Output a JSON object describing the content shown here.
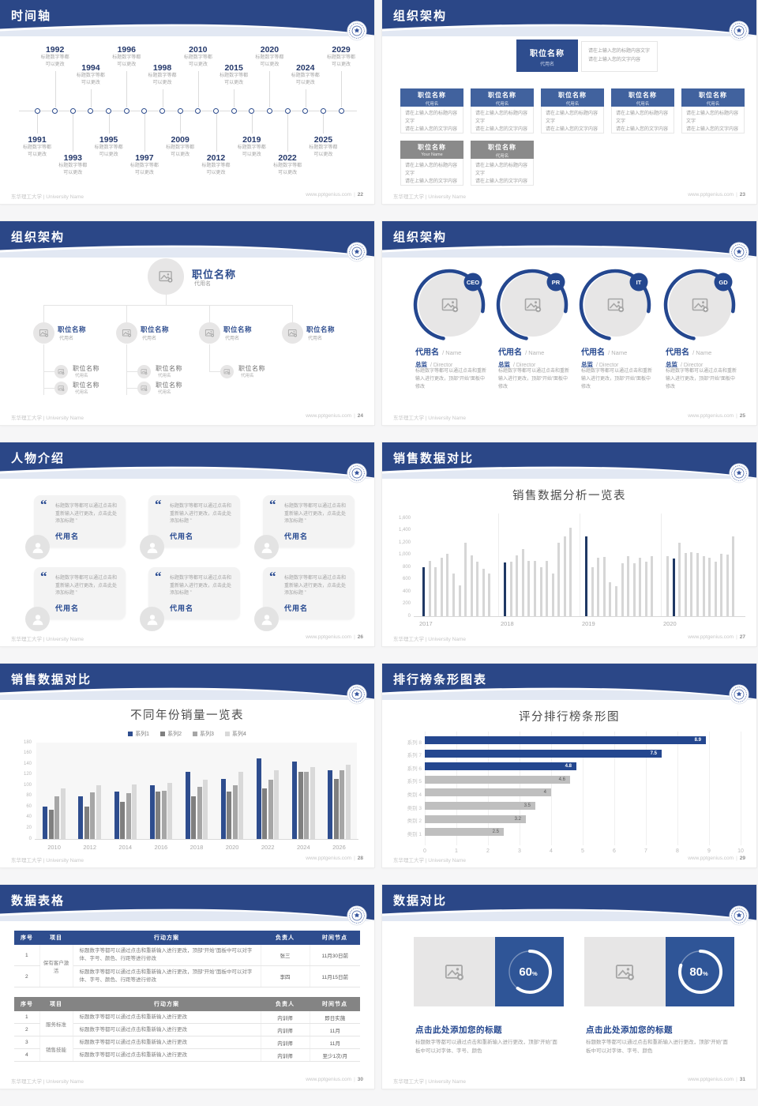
{
  "page": {
    "footer_left": "东华理工大学 | University Name",
    "footer_site": "www.pptgenius.com",
    "footer_separator": "|"
  },
  "colors": {
    "header_navy": "#2b4787",
    "navy": "#2e4d8e",
    "dark_navy": "#1f3864",
    "box_blue": "#41629e",
    "box_gray": "#8a8a8a",
    "panel_blue": "#2f5597",
    "placeholder_gray": "#e7e6e6",
    "silver": "#bfbfbf"
  },
  "common": {
    "box_body_line1": "请在上输入您的标题内容文字",
    "box_body_line2": "请在上输入您的文字内容"
  },
  "slides": {
    "timeline": {
      "title": "时间轴",
      "page_no": "22",
      "caption": [
        "标题数字等都",
        "可以更改"
      ],
      "top_years": [
        "1992",
        "1994",
        "1996",
        "1998",
        "2010",
        "2015",
        "2020",
        "2024",
        "2029"
      ],
      "bottom_years": [
        "1991",
        "1993",
        "1995",
        "1997",
        "2009",
        "2012",
        "2019",
        "2022",
        "2025"
      ]
    },
    "org_boxes": {
      "title": "组织架构",
      "page_no": "23",
      "root": {
        "name": "职位名称",
        "alias": "代用名"
      },
      "root_note": [
        "请在上输入您的标题内容文字",
        "请在上输入您的文字内容"
      ],
      "row1": [
        {
          "name": "职位名称",
          "alias": "代用名"
        },
        {
          "name": "职位名称",
          "alias": "代用名"
        },
        {
          "name": "职位名称",
          "alias": "代用名"
        },
        {
          "name": "职位名称",
          "alias": "代用名"
        },
        {
          "name": "职位名称",
          "alias": "代用名"
        }
      ],
      "row2": [
        {
          "name": "职位名称",
          "alias": "Your Name"
        },
        {
          "name": "职位名称",
          "alias": "代用名"
        }
      ]
    },
    "org_tree": {
      "title": "组织架构",
      "page_no": "24",
      "root": {
        "name": "职位名称",
        "alias": "代用名"
      },
      "branches": [
        {
          "name": "职位名称",
          "alias": "代用名",
          "children": [
            {
              "name": "职位名称",
              "alias": "代用名"
            },
            {
              "name": "职位名称",
              "alias": "代用名"
            }
          ]
        },
        {
          "name": "职位名称",
          "alias": "代用名",
          "children": [
            {
              "name": "职位名称",
              "alias": "代用名"
            },
            {
              "name": "职位名称",
              "alias": "代用名"
            }
          ]
        },
        {
          "name": "职位名称",
          "alias": "代用名",
          "children": [
            {
              "name": "职位名称",
              "alias": "代用名"
            }
          ]
        },
        {
          "name": "职位名称",
          "alias": "代用名",
          "children": []
        }
      ]
    },
    "org_profiles": {
      "title": "组织架构",
      "page_no": "25",
      "desc": "标题数字等都可以通过点击和重新输入进行更改，顶部“开始”面板中修改",
      "profiles": [
        {
          "badge": "CEO",
          "name": "代用名",
          "name_suffix": "/ Name",
          "role": "总监",
          "role_suffix": "/  Director"
        },
        {
          "badge": "PR",
          "name": "代用名",
          "name_suffix": "/ Name",
          "role": "总监",
          "role_suffix": "/  Director"
        },
        {
          "badge": "IT",
          "name": "代用名",
          "name_suffix": "/ Name",
          "role": "总监",
          "role_suffix": "/  Director"
        },
        {
          "badge": "GD",
          "name": "代用名",
          "name_suffix": "/ Name",
          "role": "总监",
          "role_suffix": "/  Director"
        }
      ]
    },
    "people": {
      "title": "人物介绍",
      "page_no": "26",
      "quote": "标题数字等都可以通过点击和重新输入进行更改，点击此处添加标题",
      "cards": [
        {
          "name": "代用名"
        },
        {
          "name": "代用名"
        },
        {
          "name": "代用名"
        },
        {
          "name": "代用名"
        },
        {
          "name": "代用名"
        },
        {
          "name": "代用名"
        }
      ]
    },
    "sales_trend": {
      "title": "销售数据对比",
      "page_no": "27"
    },
    "sales_groups": {
      "title": "销售数据对比",
      "page_no": "28"
    },
    "ranking": {
      "title": "排行榜条形图表",
      "page_no": "29"
    },
    "tables": {
      "title": "数据表格",
      "page_no": "30",
      "headers": [
        "序号",
        "项目",
        "行动方案",
        "负责人",
        "时间节点"
      ],
      "table1_rows": [
        {
          "no": "1",
          "project": "保有客户激活",
          "rowspan": 2,
          "plan": "标题数字等都可以通过点击和重新输入进行更改，顶部“开始”面板中可以对字体、字号、颜色、行距等进行修改",
          "owner": "张三",
          "due": "11月30日前"
        },
        {
          "no": "2",
          "plan": "标题数字等都可以通过点击和重新输入进行更改，顶部“开始”面板中可以对字体、字号、颜色、行距等进行修改",
          "owner": "李四",
          "due": "11月15日前"
        }
      ],
      "table2_rows": [
        {
          "no": "1",
          "project": "服务标准",
          "rowspan": 2,
          "plan": "标题数字等都可以通过点击和重新输入进行更改",
          "owner": "内训师",
          "due": "即日实施"
        },
        {
          "no": "2",
          "plan": "标题数字等都可以通过点击和重新输入进行更改",
          "owner": "内训师",
          "due": "11月"
        },
        {
          "no": "3",
          "project": "销售技能",
          "rowspan": 2,
          "plan": "标题数字等都可以通过点击和重新输入进行更改",
          "owner": "内训师",
          "due": "11月"
        },
        {
          "no": "4",
          "plan": "标题数字等都可以通过点击和重新输入进行更改",
          "owner": "内训师",
          "due": "至少1次/月"
        }
      ]
    },
    "compare": {
      "title": "数据对比",
      "page_no": "31",
      "cards": [
        {
          "percent": 60,
          "heading": "点击此处添加您的标题",
          "body": "标题数字等都可以通过点击和重新输入进行更改，顶部“开始”面板中可以对字体、字号、颜色"
        },
        {
          "percent": 80,
          "heading": "点击此处添加您的标题",
          "body": "标题数字等都可以通过点击和重新输入进行更改，顶部“开始”面板中可以对字体、字号、颜色"
        }
      ]
    }
  },
  "chart_data": [
    {
      "slide": "27",
      "type": "bar",
      "title": "销售数据分析一览表",
      "xlabel": "",
      "ylabel": "",
      "ylim": [
        0,
        1600
      ],
      "ytick_step": 200,
      "x_groups": [
        "2017",
        "2018",
        "2019",
        "2020"
      ],
      "bars_per_group": 12,
      "values": [
        [
          800,
          900,
          800,
          950,
          1020,
          700,
          500,
          1200,
          990,
          890,
          780,
          700
        ],
        [
          880,
          890,
          1000,
          1100,
          900,
          900,
          800,
          900,
          700,
          1200,
          1300,
          1450
        ],
        [
          1300,
          800,
          950,
          970,
          560,
          490,
          870,
          980,
          860,
          960,
          890,
          980
        ],
        [
          980,
          940,
          1200,
          1030,
          1050,
          1030,
          980,
          960,
          890,
          1020,
          1010,
          1300
        ]
      ],
      "highlight_index_per_group": [
        0,
        0,
        0,
        1
      ],
      "bar_color": "#d6d6d6",
      "highlight_color": "#1f3864",
      "grid": "group-separators",
      "legend": false
    },
    {
      "slide": "28",
      "type": "bar",
      "title": "不同年份销量一览表",
      "categories": [
        "2010",
        "2012",
        "2014",
        "2016",
        "2018",
        "2020",
        "2022",
        "2024",
        "2026"
      ],
      "ylim": [
        0,
        180
      ],
      "ytick_step": 20,
      "legend_position": "top",
      "series": [
        {
          "name": "系列1",
          "color": "#2e4d8e",
          "values": [
            60,
            80,
            88,
            100,
            125,
            112,
            150,
            145,
            128
          ]
        },
        {
          "name": "系列2",
          "color": "#7f7f7f",
          "values": [
            55,
            60,
            70,
            88,
            80,
            88,
            95,
            125,
            112
          ]
        },
        {
          "name": "系列3",
          "color": "#a6a6a6",
          "values": [
            80,
            87,
            85,
            90,
            97,
            100,
            110,
            125,
            128
          ]
        },
        {
          "name": "系列4",
          "color": "#d9d9d9",
          "values": [
            95,
            100,
            102,
            105,
            110,
            125,
            128,
            135,
            138
          ]
        }
      ]
    },
    {
      "slide": "29",
      "type": "bar-horizontal",
      "title": "评分排行榜条形图",
      "categories": [
        "系列 8",
        "系列 7",
        "系列 6",
        "系列 5",
        "类别 4",
        "类别 3",
        "类别 2",
        "类别 1"
      ],
      "values": [
        8.9,
        7.5,
        4.8,
        4.6,
        4,
        3.5,
        3.2,
        2.5
      ],
      "value_labels": [
        "8.9",
        "7.5",
        "4.8",
        "4.6",
        "4",
        "3.5",
        "3.2",
        "2.5"
      ],
      "colors": [
        "#24478f",
        "#24478f",
        "#24478f",
        "#bfbfbf",
        "#bfbfbf",
        "#bfbfbf",
        "#bfbfbf",
        "#bfbfbf"
      ],
      "xlim": [
        0,
        10
      ],
      "xtick_step": 1,
      "grid": "vertical"
    }
  ]
}
